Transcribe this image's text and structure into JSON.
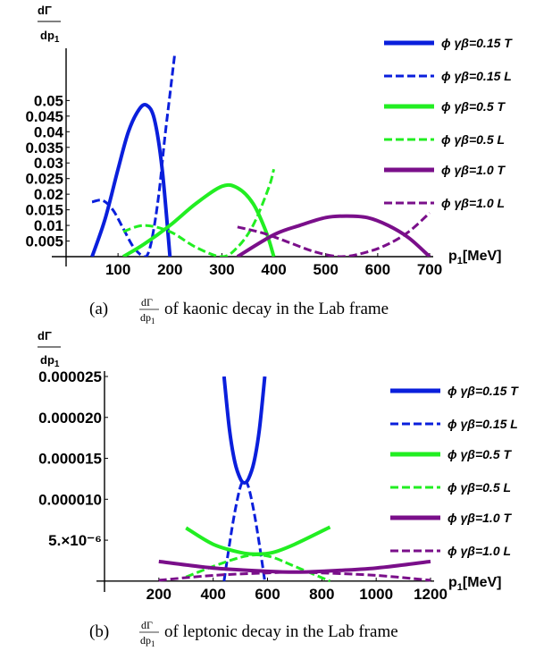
{
  "chart_data": [
    {
      "type": "line",
      "caption_prefix": "(a)",
      "caption_frac_num": "dΓ",
      "caption_frac_den": "dp",
      "caption_frac_den_sub": "1",
      "caption_text": "of kaonic decay in the Lab frame",
      "ylabel_num": "dΓ",
      "ylabel_den": "dp",
      "ylabel_den_sub": "1",
      "xlabel": "p",
      "xlabel_sub": "1",
      "xlabel_unit": "[MeV]",
      "xlim": [
        0,
        700
      ],
      "ylim": [
        0,
        0.065
      ],
      "xticks": [
        "100",
        "200",
        "300",
        "400",
        "500",
        "600",
        "700"
      ],
      "xtick_values": [
        100,
        200,
        300,
        400,
        500,
        600,
        700
      ],
      "yticks": [
        "0.005",
        "0.01",
        "0.015",
        "0.02",
        "0.025",
        "0.03",
        "0.035",
        "0.04",
        "0.045",
        "0.05"
      ],
      "ytick_values": [
        0.005,
        0.01,
        0.015,
        0.02,
        0.025,
        0.03,
        0.035,
        0.04,
        0.045,
        0.05
      ],
      "legend_position": "top-right",
      "series": [
        {
          "name": "ϕ γβ=0.15 T",
          "color": "#0a1fdc",
          "dash": "solid",
          "x": [
            50,
            75,
            100,
            120,
            140,
            155,
            170,
            185,
            200
          ],
          "y": [
            0,
            0.012,
            0.028,
            0.04,
            0.047,
            0.0485,
            0.044,
            0.028,
            0
          ]
        },
        {
          "name": "ϕ γβ=0.15 L",
          "color": "#0a1fdc",
          "dash": "dashed",
          "x": [
            50,
            70,
            90,
            110,
            130,
            150,
            160,
            170,
            180,
            190,
            200,
            210
          ],
          "y": [
            0.0175,
            0.018,
            0.015,
            0.009,
            0.003,
            0.0,
            0.002,
            0.01,
            0.022,
            0.038,
            0.052,
            0.066
          ]
        },
        {
          "name": "ϕ γβ=0.5 T",
          "color": "#22ee22",
          "dash": "solid",
          "x": [
            110,
            150,
            200,
            250,
            300,
            330,
            360,
            385,
            400
          ],
          "y": [
            0,
            0.004,
            0.01,
            0.017,
            0.0225,
            0.022,
            0.017,
            0.008,
            0
          ]
        },
        {
          "name": "ϕ γβ=0.5 L",
          "color": "#22ee22",
          "dash": "dashed",
          "x": [
            110,
            150,
            200,
            250,
            300,
            330,
            360,
            390,
            400
          ],
          "y": [
            0.008,
            0.01,
            0.008,
            0.003,
            0,
            0.003,
            0.01,
            0.022,
            0.028
          ]
        },
        {
          "name": "ϕ γβ=1.0 T",
          "color": "#7a0f8a",
          "dash": "solid",
          "x": [
            330,
            400,
            450,
            500,
            540,
            580,
            620,
            660,
            700
          ],
          "y": [
            0,
            0.007,
            0.01,
            0.0125,
            0.013,
            0.0125,
            0.01,
            0.006,
            0
          ]
        },
        {
          "name": "ϕ γβ=1.0 L",
          "color": "#7a0f8a",
          "dash": "dashed",
          "x": [
            330,
            380,
            430,
            480,
            530,
            580,
            620,
            660,
            700
          ],
          "y": [
            0.0095,
            0.0075,
            0.0045,
            0.0015,
            0,
            0.0015,
            0.004,
            0.008,
            0.014
          ]
        }
      ]
    },
    {
      "type": "line",
      "caption_prefix": "(b)",
      "caption_frac_num": "dΓ",
      "caption_frac_den": "dp",
      "caption_frac_den_sub": "1",
      "caption_text": "of leptonic decay in the Lab frame",
      "ylabel_num": "dΓ",
      "ylabel_den": "dp",
      "ylabel_den_sub": "1",
      "xlabel": "p",
      "xlabel_sub": "1",
      "xlabel_unit": "[MeV]",
      "xlim": [
        0,
        1200
      ],
      "ylim": [
        -1e-06,
        2.5e-05
      ],
      "xticks": [
        "200",
        "400",
        "600",
        "800",
        "1000",
        "1200"
      ],
      "xtick_values": [
        200,
        400,
        600,
        800,
        1000,
        1200
      ],
      "yticks": [
        "5.×10⁻⁶",
        "0.000010",
        "0.000015",
        "0.000020",
        "0.000025"
      ],
      "ytick_values": [
        5e-06,
        1e-05,
        1.5e-05,
        2e-05,
        2.5e-05
      ],
      "legend_position": "top-right",
      "series": [
        {
          "name": "ϕ γβ=0.15 T",
          "color": "#0a1fdc",
          "dash": "solid",
          "x": [
            440,
            460,
            480,
            500,
            515,
            530,
            550,
            570,
            590
          ],
          "y": [
            2.5e-05,
            1.85e-05,
            1.45e-05,
            1.25e-05,
            1.2e-05,
            1.25e-05,
            1.45e-05,
            1.85e-05,
            2.5e-05
          ]
        },
        {
          "name": "ϕ γβ=0.15 L",
          "color": "#0a1fdc",
          "dash": "dashed",
          "x": [
            440,
            460,
            480,
            500,
            515,
            530,
            550,
            570,
            590
          ],
          "y": [
            0,
            4.5e-06,
            8.5e-06,
            1.15e-05,
            1.23e-05,
            1.15e-05,
            8.5e-06,
            4.5e-06,
            0
          ]
        },
        {
          "name": "ϕ γβ=0.5 T",
          "color": "#22ee22",
          "dash": "solid",
          "x": [
            300,
            400,
            500,
            560,
            620,
            700,
            830
          ],
          "y": [
            6.5e-06,
            4.5e-06,
            3.5e-06,
            3.3e-06,
            3.5e-06,
            4.5e-06,
            6.6e-06
          ]
        },
        {
          "name": "ϕ γβ=0.5 L",
          "color": "#22ee22",
          "dash": "dashed",
          "x": [
            300,
            400,
            500,
            560,
            620,
            700,
            830
          ],
          "y": [
            5e-07,
            1.8e-06,
            2.9e-06,
            3.2e-06,
            2.9e-06,
            1.8e-06,
            0
          ]
        },
        {
          "name": "ϕ γβ=1.0 T",
          "color": "#7a0f8a",
          "dash": "solid",
          "x": [
            200,
            400,
            600,
            700,
            800,
            1000,
            1200
          ],
          "y": [
            2.4e-06,
            1.6e-06,
            1.2e-06,
            1.1e-06,
            1.2e-06,
            1.6e-06,
            2.4e-06
          ]
        },
        {
          "name": "ϕ γβ=1.0 L",
          "color": "#7a0f8a",
          "dash": "dashed",
          "x": [
            200,
            400,
            600,
            700,
            800,
            1000,
            1200
          ],
          "y": [
            1e-07,
            7e-07,
            1e-06,
            1.1e-06,
            1e-06,
            7e-07,
            1e-07
          ]
        }
      ]
    }
  ]
}
